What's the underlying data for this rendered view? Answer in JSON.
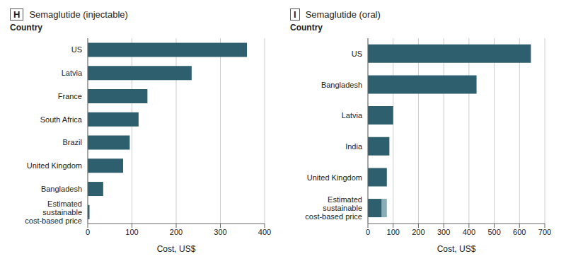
{
  "chart_data": [
    {
      "type": "bar",
      "orientation": "horizontal",
      "title": "Semaglutide (injectable)",
      "annotations": [
        "H",
        "Country"
      ],
      "categories": [
        "US",
        "Latvia",
        "France",
        "South Africa",
        "Brazil",
        "United Kingdom",
        "Bangladesh",
        "Estimated\nsustainable\ncost-based price"
      ],
      "values": [
        360,
        235,
        135,
        115,
        95,
        80,
        35,
        4
      ],
      "color": "#2e5f6e",
      "xlabel": "Cost, US$",
      "xlim": [
        0,
        400
      ],
      "xticks": [
        0,
        100,
        200,
        300,
        400
      ],
      "grid": true
    },
    {
      "type": "bar",
      "orientation": "horizontal",
      "title": "Semaglutide (oral)",
      "annotations": [
        "I",
        "Country"
      ],
      "categories": [
        "US",
        "Bangladesh",
        "Latvia",
        "India",
        "United Kingdom",
        "Estimated\nsustainable\ncost-based price"
      ],
      "series": [
        {
          "color": "#2e5f6e",
          "values": [
            645,
            430,
            100,
            85,
            75,
            55
          ]
        },
        {
          "color": "#8aacb5",
          "values": [
            0,
            0,
            0,
            0,
            0,
            20
          ]
        }
      ],
      "stacked": true,
      "xlabel": "Cost, US$",
      "xlim": [
        0,
        700
      ],
      "xticks": [
        0,
        100,
        200,
        300,
        400,
        500,
        600,
        700
      ],
      "grid": true
    }
  ]
}
